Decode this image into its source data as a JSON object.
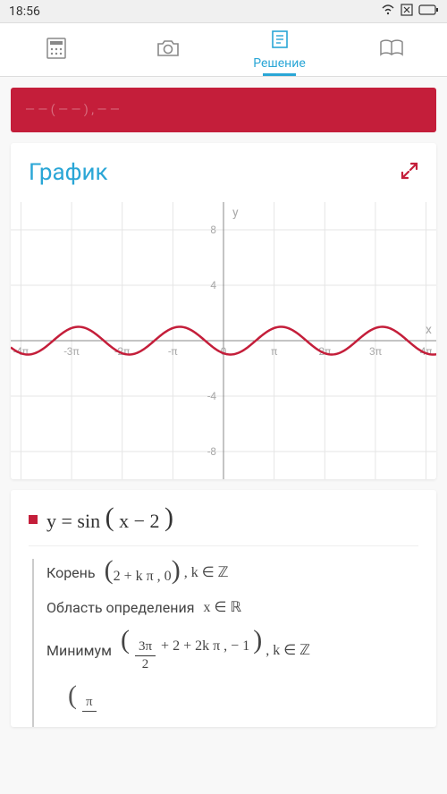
{
  "status": {
    "time": "18:56"
  },
  "tabs": {
    "active_label": "Решение"
  },
  "graph_card": {
    "title": "График",
    "chart": {
      "type": "line",
      "function": "sin(x-2)",
      "xlim": [
        -13.2,
        13.2
      ],
      "ylim": [
        -10,
        10
      ],
      "xticks": [
        {
          "v": -12.566,
          "l": "-4π"
        },
        {
          "v": -9.4248,
          "l": "-3π"
        },
        {
          "v": -6.2832,
          "l": "-2π"
        },
        {
          "v": -3.1416,
          "l": "-π"
        },
        {
          "v": 0,
          "l": "0"
        },
        {
          "v": 3.1416,
          "l": "π"
        },
        {
          "v": 6.2832,
          "l": "2π"
        },
        {
          "v": 9.4248,
          "l": "3π"
        },
        {
          "v": 12.566,
          "l": "4π"
        }
      ],
      "yticks": [
        {
          "v": -8,
          "l": "-8"
        },
        {
          "v": -4,
          "l": "-4"
        },
        {
          "v": 4,
          "l": "4"
        },
        {
          "v": 8,
          "l": "8"
        }
      ],
      "x_axis_label": "x",
      "y_axis_label": "y",
      "line_color": "#c41e3a",
      "line_width": 2.5,
      "grid_color": "#e5e5e5",
      "axis_color": "#888888",
      "tick_label_color": "#aaaaaa",
      "bg_color": "#ffffff"
    }
  },
  "formula": {
    "equation": "y = sin ( x − 2 )",
    "root_label": "Корень",
    "root_expr_a": "2 + k π , 0",
    "root_tail": ", k ∈ ℤ",
    "domain_label": "Область определения",
    "domain_expr": "x ∈ ℝ",
    "min_label": "Минимум",
    "min_frac_num": "3π",
    "min_frac_den": "2",
    "min_rest": " + 2 + 2k π , − 1",
    "min_tail": ", k ∈ ℤ",
    "max_frac_num": "π"
  }
}
